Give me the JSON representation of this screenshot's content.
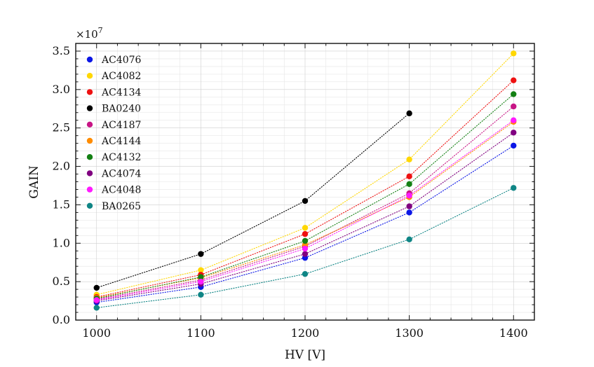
{
  "chart_data": {
    "type": "scatter",
    "title": "",
    "xlabel": "HV [V]",
    "ylabel": "GAIN",
    "y_multiplier_label": "×10",
    "y_multiplier_exponent": "7",
    "xlim": [
      980,
      1420
    ],
    "ylim": [
      0,
      3.6
    ],
    "x_ticks": [
      1000,
      1100,
      1200,
      1300,
      1400
    ],
    "x_tick_labels": [
      "1000",
      "1100",
      "1200",
      "1300",
      "1400"
    ],
    "y_ticks": [
      0,
      0.5,
      1.0,
      1.5,
      2.0,
      2.5,
      3.0,
      3.5
    ],
    "y_tick_labels": [
      "0.0",
      "0.5",
      "1.0",
      "1.5",
      "2.0",
      "2.5",
      "3.0",
      "3.5"
    ],
    "grid": true,
    "legend_position": "top-left",
    "line_style": "dotted",
    "x": [
      1000,
      1100,
      1200,
      1300,
      1400
    ],
    "series": [
      {
        "name": "AC4076",
        "color": "#0b16e6",
        "values": [
          0.23,
          0.43,
          0.81,
          1.4,
          2.27
        ]
      },
      {
        "name": "AC4082",
        "color": "#ffd700",
        "values": [
          0.33,
          0.65,
          1.2,
          2.09,
          3.47
        ]
      },
      {
        "name": "AC4134",
        "color": "#ee1111",
        "values": [
          0.3,
          0.59,
          1.12,
          1.87,
          3.12
        ]
      },
      {
        "name": "BA0240",
        "color": "#000000",
        "values": [
          0.42,
          0.86,
          1.55,
          2.69,
          null
        ]
      },
      {
        "name": "AC4187",
        "color": "#c71585",
        "values": [
          0.27,
          0.52,
          0.96,
          1.65,
          2.78
        ]
      },
      {
        "name": "AC4144",
        "color": "#ff8c00",
        "values": [
          0.29,
          0.55,
          0.98,
          1.6,
          2.58
        ]
      },
      {
        "name": "AC4132",
        "color": "#138013",
        "values": [
          0.28,
          0.56,
          1.03,
          1.77,
          2.94
        ]
      },
      {
        "name": "AC4074",
        "color": "#800080",
        "values": [
          0.25,
          0.47,
          0.86,
          1.48,
          2.44
        ]
      },
      {
        "name": "AC4048",
        "color": "#ff1aff",
        "values": [
          0.26,
          0.5,
          0.93,
          1.62,
          2.6
        ]
      },
      {
        "name": "BA0265",
        "color": "#0f8585",
        "values": [
          0.16,
          0.33,
          0.6,
          1.05,
          1.72
        ]
      }
    ]
  }
}
